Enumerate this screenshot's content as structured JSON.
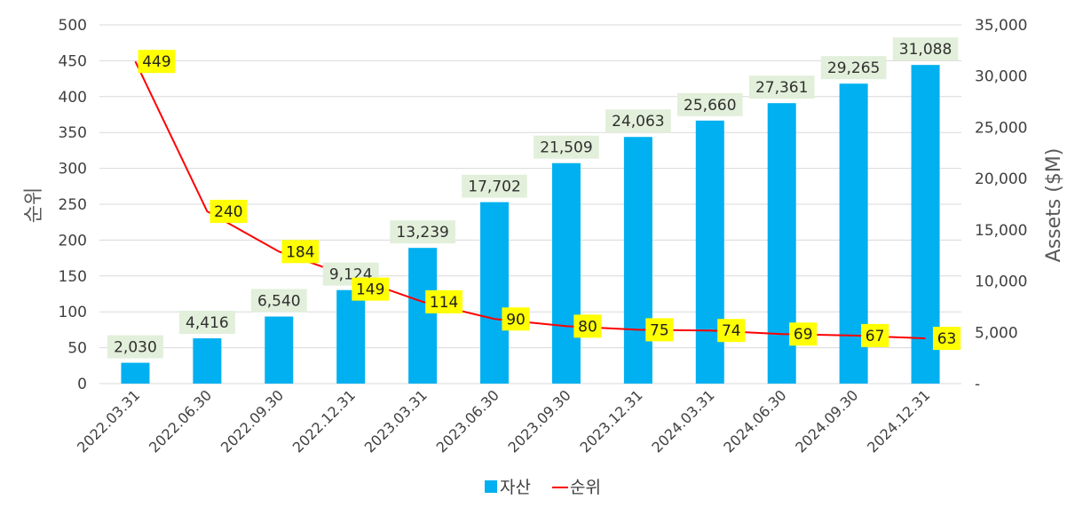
{
  "chart_data": {
    "type": "bar",
    "categories": [
      "2022.03.31",
      "2022.06.30",
      "2022.09.30",
      "2022.12.31",
      "2023.03.31",
      "2023.06.30",
      "2023.09.30",
      "2023.12.31",
      "2024.03.31",
      "2024.06.30",
      "2024.09.30",
      "2024.12.31"
    ],
    "series": [
      {
        "name": "자산",
        "type": "bar",
        "axis": "right",
        "color": "#00b0f0",
        "values": [
          2030,
          4416,
          6540,
          9124,
          13239,
          17702,
          21509,
          24063,
          25660,
          27361,
          29265,
          31088
        ],
        "labels": [
          "2,030",
          "4,416",
          "6,540",
          "9,124",
          "13,239",
          "17,702",
          "21,509",
          "24,063",
          "25,660",
          "27,361",
          "29,265",
          "31,088"
        ],
        "label_bg": "#e2efda"
      },
      {
        "name": "순위",
        "type": "line",
        "axis": "left",
        "color": "#ff0000",
        "values": [
          449,
          240,
          184,
          149,
          114,
          90,
          80,
          75,
          74,
          69,
          67,
          63
        ],
        "labels": [
          "449",
          "240",
          "184",
          "149",
          "114",
          "90",
          "80",
          "75",
          "74",
          "69",
          "67",
          "63"
        ],
        "label_bg": "#ffff00"
      }
    ],
    "y_left": {
      "title": "순위",
      "ylim": [
        0,
        500
      ],
      "ticks": [
        0,
        50,
        100,
        150,
        200,
        250,
        300,
        350,
        400,
        450,
        500
      ],
      "tick_labels": [
        "0",
        "50",
        "100",
        "150",
        "200",
        "250",
        "300",
        "350",
        "400",
        "450",
        "500"
      ]
    },
    "y_right": {
      "title": "Assets ($M)",
      "ylim": [
        0,
        35000
      ],
      "ticks": [
        0,
        5000,
        10000,
        15000,
        20000,
        25000,
        30000,
        35000
      ],
      "tick_labels": [
        "-",
        "5,000",
        "10,000",
        "15,000",
        "20,000",
        "25,000",
        "30,000",
        "35,000"
      ]
    },
    "grid": true,
    "legend": {
      "position": "bottom",
      "items": [
        "자산",
        "순위"
      ]
    },
    "gridline_color": "#d9d9d9"
  }
}
